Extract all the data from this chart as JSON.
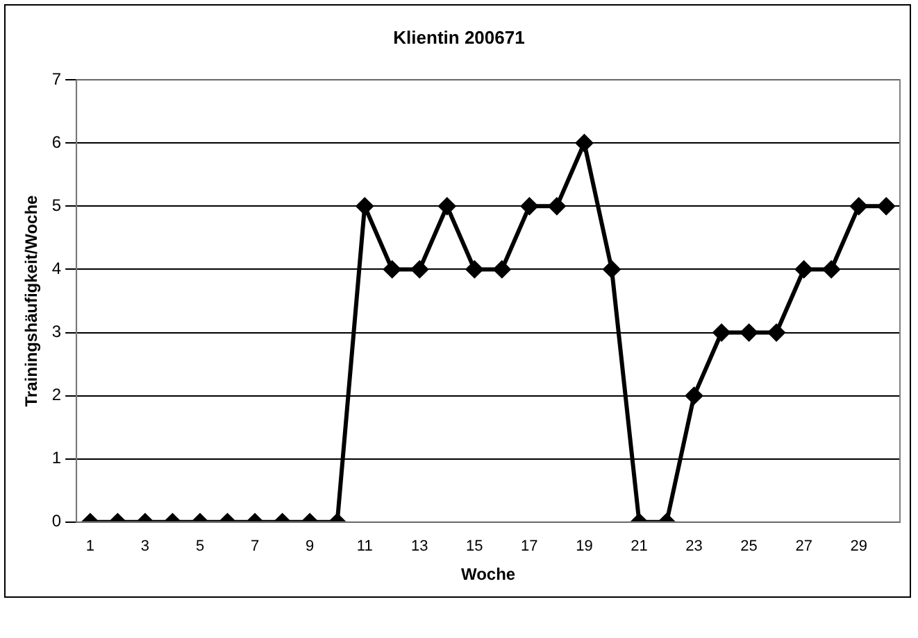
{
  "chart_data": {
    "type": "line",
    "title": "Klientin 200671",
    "xlabel": "Woche",
    "ylabel": "Trainingshäufigkeit/Woche",
    "x": [
      1,
      2,
      3,
      4,
      5,
      6,
      7,
      8,
      9,
      10,
      11,
      12,
      13,
      14,
      15,
      16,
      17,
      18,
      19,
      20,
      21,
      22,
      23,
      24,
      25,
      26,
      27,
      28,
      29,
      30
    ],
    "series": [
      {
        "color": "#000000",
        "values": [
          0,
          0,
          0,
          0,
          0,
          0,
          0,
          0,
          0,
          0,
          5,
          4,
          4,
          5,
          4,
          4,
          5,
          5,
          6,
          4,
          0,
          0,
          2,
          3,
          3,
          3,
          4,
          4,
          5,
          5
        ]
      }
    ],
    "xlim": [
      0.5,
      30.5
    ],
    "xticks": [
      1,
      3,
      5,
      7,
      9,
      11,
      13,
      15,
      17,
      19,
      21,
      23,
      25,
      27,
      29
    ],
    "ylim": [
      0,
      7
    ],
    "yticks": [
      0,
      1,
      2,
      3,
      4,
      5,
      6,
      7
    ],
    "grid": "y",
    "marker": "diamond",
    "line_style": "solid"
  }
}
